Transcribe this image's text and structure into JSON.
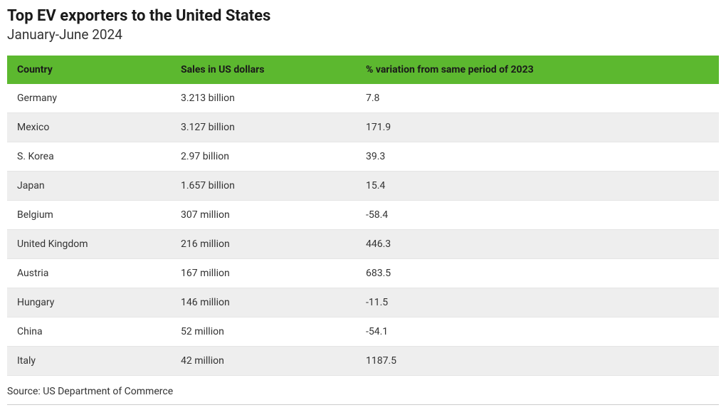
{
  "title": "Top EV exporters to the United States",
  "subtitle": "January-June 2024",
  "table": {
    "type": "table",
    "header_bg_color": "#5cb82f",
    "header_text_color": "#1a1a1a",
    "row_odd_bg": "#ffffff",
    "row_even_bg": "#eeeeee",
    "border_color": "#e5e5e5",
    "font_size": 14,
    "columns": [
      {
        "label": "Country",
        "width": "23%",
        "align": "left"
      },
      {
        "label": "Sales in US dollars",
        "width": "26%",
        "align": "left"
      },
      {
        "label": "% variation from same period of 2023",
        "width": "51%",
        "align": "left"
      }
    ],
    "rows": [
      {
        "country": "Germany",
        "sales": "3.213 billion",
        "variation": "7.8"
      },
      {
        "country": "Mexico",
        "sales": "3.127 billion",
        "variation": "171.9"
      },
      {
        "country": "S. Korea",
        "sales": "2.97 billion",
        "variation": "39.3"
      },
      {
        "country": "Japan",
        "sales": "1.657 billion",
        "variation": "15.4"
      },
      {
        "country": "Belgium",
        "sales": "307 million",
        "variation": "-58.4"
      },
      {
        "country": "United Kingdom",
        "sales": "216 million",
        "variation": "446.3"
      },
      {
        "country": "Austria",
        "sales": "167 million",
        "variation": "683.5"
      },
      {
        "country": "Hungary",
        "sales": "146 million",
        "variation": "-11.5"
      },
      {
        "country": "China",
        "sales": "52 million",
        "variation": "-54.1"
      },
      {
        "country": "Italy",
        "sales": "42 million",
        "variation": "1187.5"
      }
    ]
  },
  "source": "Source: US Department of Commerce",
  "background_color": "#ffffff",
  "title_fontsize": 22,
  "subtitle_fontsize": 19
}
